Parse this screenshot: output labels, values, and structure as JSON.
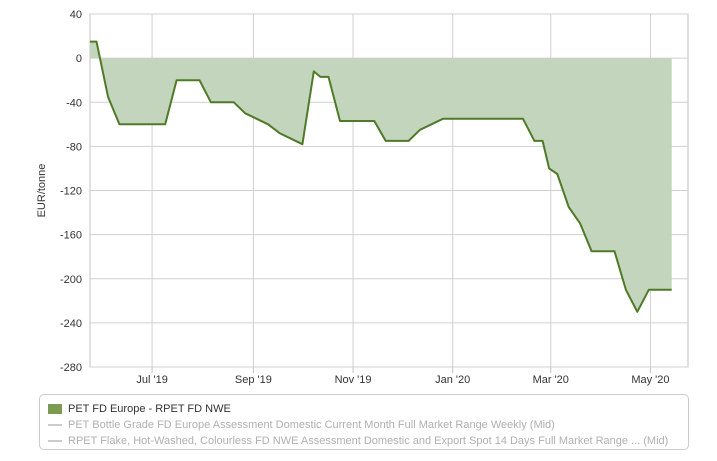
{
  "chart_data": {
    "type": "area",
    "ylabel": "EUR/tonne",
    "xlabel": "",
    "title": "",
    "ylim": [
      -280,
      40
    ],
    "yticks": [
      40,
      0,
      -40,
      -80,
      -120,
      -160,
      -200,
      -240,
      -280
    ],
    "xlim": [
      "2019-05-24",
      "2020-05-24"
    ],
    "xticks": [
      {
        "label": "Jul '19",
        "date": "2019-07-01"
      },
      {
        "label": "Sep '19",
        "date": "2019-09-01"
      },
      {
        "label": "Nov '19",
        "date": "2019-11-01"
      },
      {
        "label": "Jan '20",
        "date": "2020-01-01"
      },
      {
        "label": "Mar '20",
        "date": "2020-03-01"
      },
      {
        "label": "May '20",
        "date": "2020-05-01"
      }
    ],
    "grid": true,
    "legend_position": "bottom",
    "series": [
      {
        "name": "PET FD Europe - RPET FD NWE",
        "color": "#4f7a28",
        "fill": "#c3d5bd",
        "points": [
          {
            "x": "2019-05-24",
            "y": 15
          },
          {
            "x": "2019-05-28",
            "y": 15
          },
          {
            "x": "2019-06-04",
            "y": -35
          },
          {
            "x": "2019-06-11",
            "y": -60
          },
          {
            "x": "2019-06-18",
            "y": -60
          },
          {
            "x": "2019-06-25",
            "y": -60
          },
          {
            "x": "2019-07-02",
            "y": -60
          },
          {
            "x": "2019-07-09",
            "y": -60
          },
          {
            "x": "2019-07-16",
            "y": -20
          },
          {
            "x": "2019-07-23",
            "y": -20
          },
          {
            "x": "2019-07-30",
            "y": -20
          },
          {
            "x": "2019-08-06",
            "y": -40
          },
          {
            "x": "2019-08-13",
            "y": -40
          },
          {
            "x": "2019-08-20",
            "y": -40
          },
          {
            "x": "2019-08-27",
            "y": -50
          },
          {
            "x": "2019-09-03",
            "y": -55
          },
          {
            "x": "2019-09-10",
            "y": -60
          },
          {
            "x": "2019-09-17",
            "y": -68
          },
          {
            "x": "2019-09-24",
            "y": -73
          },
          {
            "x": "2019-10-01",
            "y": -78
          },
          {
            "x": "2019-10-08",
            "y": -12
          },
          {
            "x": "2019-10-12",
            "y": -17
          },
          {
            "x": "2019-10-17",
            "y": -17
          },
          {
            "x": "2019-10-24",
            "y": -57
          },
          {
            "x": "2019-10-31",
            "y": -57
          },
          {
            "x": "2019-11-07",
            "y": -57
          },
          {
            "x": "2019-11-14",
            "y": -57
          },
          {
            "x": "2019-11-21",
            "y": -75
          },
          {
            "x": "2019-11-28",
            "y": -75
          },
          {
            "x": "2019-12-05",
            "y": -75
          },
          {
            "x": "2019-12-12",
            "y": -65
          },
          {
            "x": "2019-12-19",
            "y": -60
          },
          {
            "x": "2019-12-26",
            "y": -55
          },
          {
            "x": "2020-01-02",
            "y": -55
          },
          {
            "x": "2020-01-09",
            "y": -55
          },
          {
            "x": "2020-01-16",
            "y": -55
          },
          {
            "x": "2020-01-23",
            "y": -55
          },
          {
            "x": "2020-01-30",
            "y": -55
          },
          {
            "x": "2020-02-06",
            "y": -55
          },
          {
            "x": "2020-02-13",
            "y": -55
          },
          {
            "x": "2020-02-20",
            "y": -75
          },
          {
            "x": "2020-02-25",
            "y": -75
          },
          {
            "x": "2020-02-29",
            "y": -100
          },
          {
            "x": "2020-03-05",
            "y": -105
          },
          {
            "x": "2020-03-12",
            "y": -135
          },
          {
            "x": "2020-03-19",
            "y": -150
          },
          {
            "x": "2020-03-26",
            "y": -175
          },
          {
            "x": "2020-04-02",
            "y": -175
          },
          {
            "x": "2020-04-09",
            "y": -175
          },
          {
            "x": "2020-04-16",
            "y": -210
          },
          {
            "x": "2020-04-23",
            "y": -230
          },
          {
            "x": "2020-04-30",
            "y": -210
          },
          {
            "x": "2020-05-07",
            "y": -210
          },
          {
            "x": "2020-05-14",
            "y": -210
          }
        ]
      },
      {
        "name": "PET Bottle Grade FD Europe Assessment Domestic Current Month Full Market Range Weekly (Mid)",
        "color": "#cccccc",
        "visible": false,
        "points": []
      },
      {
        "name": "RPET Flake, Hot-Washed, Colourless FD NWE Assessment Domestic and Export Spot 14 Days Full Market Range ... (Mid)",
        "color": "#cccccc",
        "visible": false,
        "points": []
      }
    ]
  }
}
